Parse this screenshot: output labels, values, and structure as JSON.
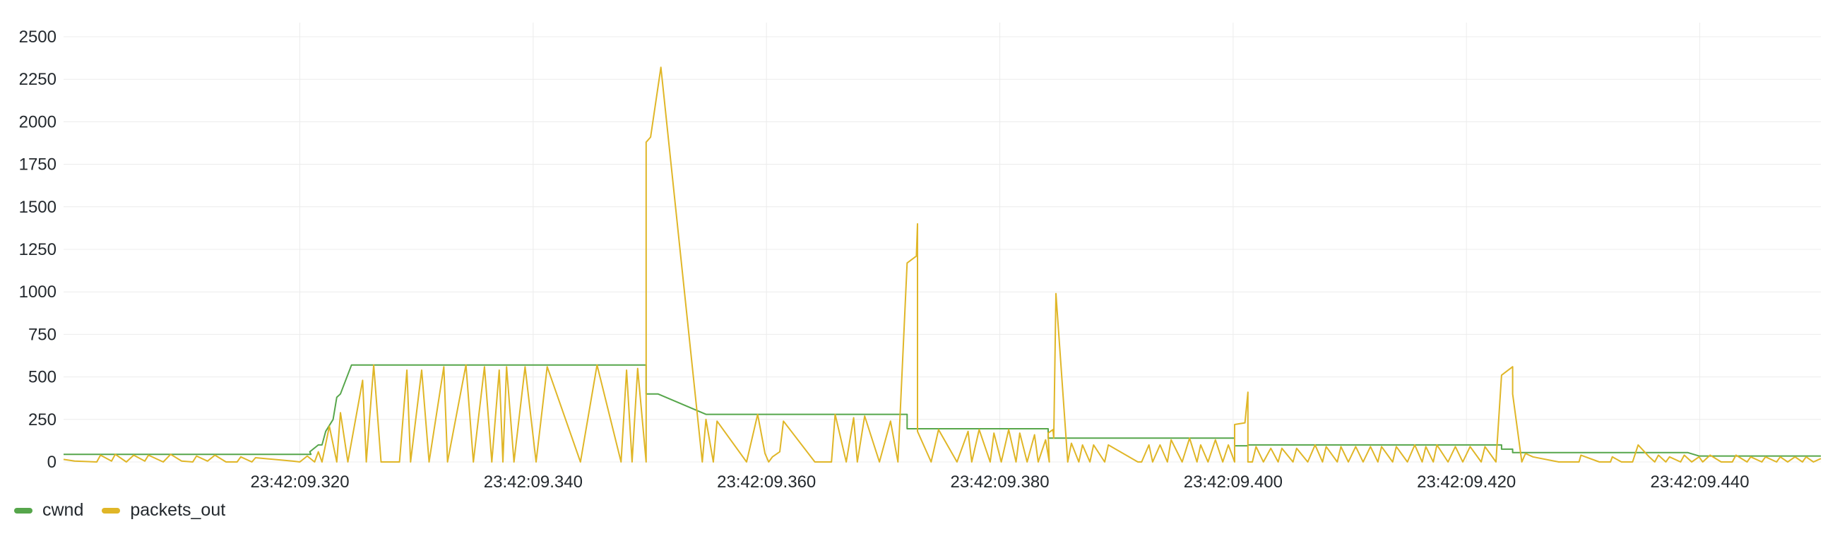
{
  "colors": {
    "cwnd": "#56a64b",
    "packets_out": "#e0b627",
    "grid": "#ececec",
    "text": "#24292e"
  },
  "legend": {
    "items": [
      {
        "key": "cwnd",
        "label": "cwnd"
      },
      {
        "key": "packets_out",
        "label": "packets_out"
      }
    ]
  },
  "chart_data": {
    "type": "line",
    "xlim": [
      0,
      0.476
    ],
    "ylim": [
      0,
      2500
    ],
    "grid": true,
    "legend_position": "bottom-left",
    "yticks": [
      0,
      250,
      500,
      750,
      1000,
      1250,
      1500,
      1750,
      2000,
      2250,
      2500
    ],
    "xticks": [
      {
        "v": 0.064,
        "label": "23:42:09.320"
      },
      {
        "v": 0.1272,
        "label": "23:42:09.340"
      },
      {
        "v": 0.1904,
        "label": "23:42:09.360"
      },
      {
        "v": 0.2536,
        "label": "23:42:09.380"
      },
      {
        "v": 0.3168,
        "label": "23:42:09.400"
      },
      {
        "v": 0.38,
        "label": "23:42:09.420"
      },
      {
        "v": 0.4432,
        "label": "23:42:09.440"
      }
    ],
    "series": [
      {
        "name": "cwnd",
        "key": "cwnd",
        "points": [
          [
            0.0,
            45
          ],
          [
            0.067,
            45
          ],
          [
            0.0667,
            60
          ],
          [
            0.069,
            100
          ],
          [
            0.07,
            100
          ],
          [
            0.071,
            180
          ],
          [
            0.073,
            250
          ],
          [
            0.074,
            380
          ],
          [
            0.075,
            400
          ],
          [
            0.078,
            570
          ],
          [
            0.1578,
            570
          ],
          [
            0.1578,
            400
          ],
          [
            0.161,
            400
          ],
          [
            0.174,
            280
          ],
          [
            0.2285,
            280
          ],
          [
            0.2285,
            195
          ],
          [
            0.2667,
            195
          ],
          [
            0.2667,
            140
          ],
          [
            0.3172,
            140
          ],
          [
            0.3172,
            95
          ],
          [
            0.3208,
            95
          ],
          [
            0.3208,
            100
          ],
          [
            0.3895,
            100
          ],
          [
            0.3895,
            75
          ],
          [
            0.3925,
            75
          ],
          [
            0.3925,
            55
          ],
          [
            0.44,
            55
          ],
          [
            0.443,
            35
          ],
          [
            0.476,
            35
          ]
        ]
      },
      {
        "name": "packets_out",
        "key": "packets_out",
        "points": [
          [
            0.0,
            15
          ],
          [
            0.003,
            5
          ],
          [
            0.009,
            0
          ],
          [
            0.01,
            40
          ],
          [
            0.013,
            5
          ],
          [
            0.014,
            45
          ],
          [
            0.017,
            0
          ],
          [
            0.019,
            40
          ],
          [
            0.022,
            5
          ],
          [
            0.023,
            40
          ],
          [
            0.027,
            0
          ],
          [
            0.029,
            45
          ],
          [
            0.032,
            5
          ],
          [
            0.035,
            0
          ],
          [
            0.036,
            35
          ],
          [
            0.039,
            5
          ],
          [
            0.041,
            40
          ],
          [
            0.044,
            0
          ],
          [
            0.047,
            0
          ],
          [
            0.048,
            30
          ],
          [
            0.051,
            0
          ],
          [
            0.052,
            25
          ],
          [
            0.057,
            15
          ],
          [
            0.062,
            5
          ],
          [
            0.064,
            0
          ],
          [
            0.066,
            35
          ],
          [
            0.068,
            0
          ],
          [
            0.069,
            60
          ],
          [
            0.07,
            0
          ],
          [
            0.072,
            210
          ],
          [
            0.074,
            0
          ],
          [
            0.075,
            290
          ],
          [
            0.077,
            0
          ],
          [
            0.081,
            480
          ],
          [
            0.082,
            0
          ],
          [
            0.084,
            570
          ],
          [
            0.086,
            0
          ],
          [
            0.091,
            0
          ],
          [
            0.093,
            540
          ],
          [
            0.094,
            0
          ],
          [
            0.097,
            540
          ],
          [
            0.099,
            0
          ],
          [
            0.103,
            560
          ],
          [
            0.104,
            0
          ],
          [
            0.109,
            570
          ],
          [
            0.111,
            0
          ],
          [
            0.114,
            560
          ],
          [
            0.116,
            0
          ],
          [
            0.118,
            540
          ],
          [
            0.119,
            0
          ],
          [
            0.12,
            560
          ],
          [
            0.122,
            0
          ],
          [
            0.125,
            560
          ],
          [
            0.128,
            0
          ],
          [
            0.131,
            560
          ],
          [
            0.14,
            0
          ],
          [
            0.14,
            0
          ],
          [
            0.1445,
            570
          ],
          [
            0.151,
            0
          ],
          [
            0.1525,
            540
          ],
          [
            0.154,
            0
          ],
          [
            0.1555,
            550
          ],
          [
            0.1578,
            0
          ],
          [
            0.1578,
            1880
          ],
          [
            0.159,
            1910
          ],
          [
            0.1618,
            2320
          ],
          [
            0.173,
            0
          ],
          [
            0.174,
            250
          ],
          [
            0.176,
            0
          ],
          [
            0.177,
            240
          ],
          [
            0.185,
            0
          ],
          [
            0.188,
            280
          ],
          [
            0.19,
            50
          ],
          [
            0.191,
            0
          ],
          [
            0.192,
            30
          ],
          [
            0.194,
            60
          ],
          [
            0.195,
            240
          ],
          [
            0.2035,
            0
          ],
          [
            0.208,
            0
          ],
          [
            0.209,
            280
          ],
          [
            0.212,
            0
          ],
          [
            0.214,
            260
          ],
          [
            0.215,
            0
          ],
          [
            0.217,
            270
          ],
          [
            0.221,
            0
          ],
          [
            0.224,
            240
          ],
          [
            0.226,
            0
          ],
          [
            0.2285,
            1170
          ],
          [
            0.231,
            1210
          ],
          [
            0.2313,
            1400
          ],
          [
            0.2313,
            180
          ],
          [
            0.235,
            0
          ],
          [
            0.237,
            190
          ],
          [
            0.242,
            0
          ],
          [
            0.245,
            180
          ],
          [
            0.246,
            0
          ],
          [
            0.248,
            190
          ],
          [
            0.251,
            0
          ],
          [
            0.252,
            170
          ],
          [
            0.254,
            0
          ],
          [
            0.256,
            190
          ],
          [
            0.258,
            0
          ],
          [
            0.259,
            170
          ],
          [
            0.261,
            0
          ],
          [
            0.263,
            160
          ],
          [
            0.264,
            0
          ],
          [
            0.266,
            130
          ],
          [
            0.267,
            0
          ],
          [
            0.2667,
            170
          ],
          [
            0.268,
            190
          ],
          [
            0.2682,
            140
          ],
          [
            0.2688,
            990
          ],
          [
            0.272,
            0
          ],
          [
            0.273,
            110
          ],
          [
            0.275,
            0
          ],
          [
            0.276,
            100
          ],
          [
            0.278,
            0
          ],
          [
            0.279,
            100
          ],
          [
            0.282,
            0
          ],
          [
            0.283,
            100
          ],
          [
            0.291,
            0
          ],
          [
            0.292,
            0
          ],
          [
            0.294,
            100
          ],
          [
            0.295,
            0
          ],
          [
            0.297,
            100
          ],
          [
            0.299,
            0
          ],
          [
            0.3,
            130
          ],
          [
            0.303,
            0
          ],
          [
            0.305,
            140
          ],
          [
            0.307,
            0
          ],
          [
            0.308,
            100
          ],
          [
            0.31,
            0
          ],
          [
            0.312,
            130
          ],
          [
            0.314,
            0
          ],
          [
            0.3155,
            100
          ],
          [
            0.3172,
            0
          ],
          [
            0.3172,
            220
          ],
          [
            0.32,
            230
          ],
          [
            0.3208,
            410
          ],
          [
            0.3208,
            0
          ],
          [
            0.322,
            0
          ],
          [
            0.323,
            90
          ],
          [
            0.325,
            0
          ],
          [
            0.327,
            80
          ],
          [
            0.329,
            0
          ],
          [
            0.33,
            80
          ],
          [
            0.333,
            0
          ],
          [
            0.334,
            80
          ],
          [
            0.337,
            0
          ],
          [
            0.339,
            100
          ],
          [
            0.341,
            0
          ],
          [
            0.342,
            90
          ],
          [
            0.345,
            0
          ],
          [
            0.346,
            90
          ],
          [
            0.348,
            0
          ],
          [
            0.35,
            90
          ],
          [
            0.352,
            0
          ],
          [
            0.354,
            90
          ],
          [
            0.356,
            0
          ],
          [
            0.357,
            90
          ],
          [
            0.36,
            0
          ],
          [
            0.361,
            90
          ],
          [
            0.364,
            0
          ],
          [
            0.366,
            100
          ],
          [
            0.368,
            0
          ],
          [
            0.369,
            90
          ],
          [
            0.371,
            0
          ],
          [
            0.372,
            100
          ],
          [
            0.375,
            0
          ],
          [
            0.377,
            90
          ],
          [
            0.379,
            0
          ],
          [
            0.381,
            90
          ],
          [
            0.384,
            0
          ],
          [
            0.385,
            90
          ],
          [
            0.388,
            0
          ],
          [
            0.3895,
            510
          ],
          [
            0.3925,
            560
          ],
          [
            0.3925,
            400
          ],
          [
            0.395,
            0
          ],
          [
            0.396,
            50
          ],
          [
            0.398,
            30
          ],
          [
            0.405,
            0
          ],
          [
            0.4105,
            0
          ],
          [
            0.411,
            40
          ],
          [
            0.416,
            0
          ],
          [
            0.419,
            0
          ],
          [
            0.4195,
            30
          ],
          [
            0.422,
            0
          ],
          [
            0.425,
            0
          ],
          [
            0.4265,
            100
          ],
          [
            0.4295,
            30
          ],
          [
            0.431,
            0
          ],
          [
            0.432,
            40
          ],
          [
            0.434,
            0
          ],
          [
            0.435,
            30
          ],
          [
            0.438,
            0
          ],
          [
            0.439,
            40
          ],
          [
            0.441,
            0
          ],
          [
            0.443,
            30
          ],
          [
            0.444,
            0
          ],
          [
            0.446,
            40
          ],
          [
            0.449,
            0
          ],
          [
            0.452,
            0
          ],
          [
            0.453,
            40
          ],
          [
            0.456,
            0
          ],
          [
            0.457,
            30
          ],
          [
            0.46,
            0
          ],
          [
            0.461,
            30
          ],
          [
            0.464,
            0
          ],
          [
            0.465,
            30
          ],
          [
            0.467,
            0
          ],
          [
            0.469,
            30
          ],
          [
            0.471,
            0
          ],
          [
            0.472,
            30
          ],
          [
            0.474,
            0
          ],
          [
            0.476,
            20
          ]
        ]
      }
    ]
  }
}
